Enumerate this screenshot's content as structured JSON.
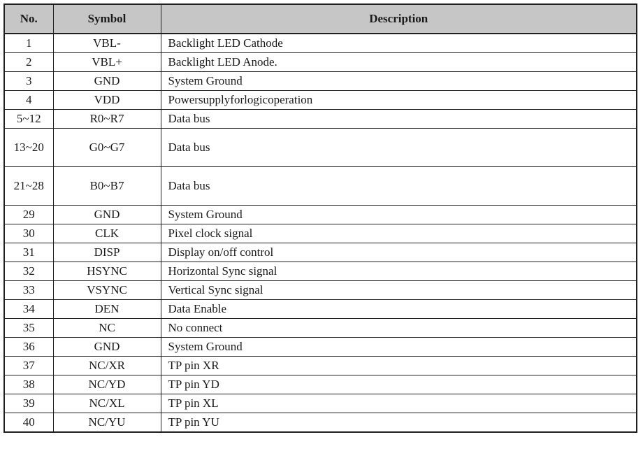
{
  "table": {
    "name": "pin-description-table",
    "headers": [
      "No.",
      "Symbol",
      "Description"
    ],
    "rows": [
      {
        "no": "1",
        "symbol": "VBL-",
        "description": "Backlight LED Cathode",
        "tall": false
      },
      {
        "no": "2",
        "symbol": "VBL+",
        "description": "Backlight LED Anode.",
        "tall": false
      },
      {
        "no": "3",
        "symbol": "GND",
        "description": "System Ground",
        "tall": false
      },
      {
        "no": "4",
        "symbol": "VDD",
        "description": "Powersupplyforlogicoperation",
        "tall": false
      },
      {
        "no": "5~12",
        "symbol": "R0~R7",
        "description": "Data bus",
        "tall": false
      },
      {
        "no": "13~20",
        "symbol": "G0~G7",
        "description": "Data bus",
        "tall": true
      },
      {
        "no": "21~28",
        "symbol": "B0~B7",
        "description": "Data bus",
        "tall": true
      },
      {
        "no": "29",
        "symbol": "GND",
        "description": "System Ground",
        "tall": false
      },
      {
        "no": "30",
        "symbol": "CLK",
        "description": "Pixel clock signal",
        "tall": false
      },
      {
        "no": "31",
        "symbol": "DISP",
        "description": "Display on/off control",
        "tall": false
      },
      {
        "no": "32",
        "symbol": "HSYNC",
        "description": "Horizontal Sync signal",
        "tall": false
      },
      {
        "no": "33",
        "symbol": "VSYNC",
        "description": "Vertical Sync signal",
        "tall": false
      },
      {
        "no": "34",
        "symbol": "DEN",
        "description": "Data Enable",
        "tall": false
      },
      {
        "no": "35",
        "symbol": "NC",
        "description": "No connect",
        "tall": false
      },
      {
        "no": "36",
        "symbol": "GND",
        "description": "System Ground",
        "tall": false
      },
      {
        "no": "37",
        "symbol": "NC/XR",
        "description": "TP pin XR",
        "tall": false
      },
      {
        "no": "38",
        "symbol": "NC/YD",
        "description": "TP pin YD",
        "tall": false
      },
      {
        "no": "39",
        "symbol": "NC/XL",
        "description": "TP pin XL",
        "tall": false
      },
      {
        "no": "40",
        "symbol": "NC/YU",
        "description": "TP pin YU",
        "tall": false
      }
    ],
    "colors": {
      "header_bg": "#c6c6c6",
      "border": "#1f1f1f",
      "text": "#1a1a1a",
      "page_bg": "#ffffff"
    }
  }
}
